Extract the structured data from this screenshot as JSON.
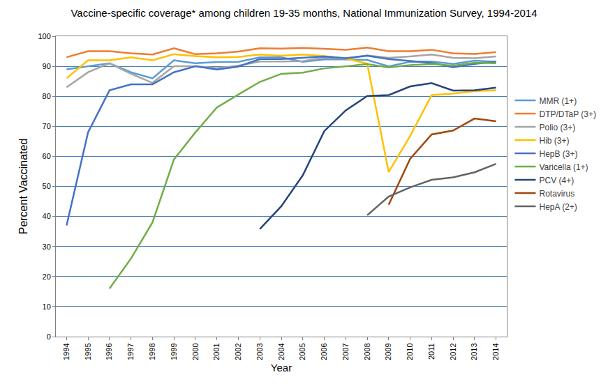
{
  "chart_data": {
    "type": "line",
    "title": "Vaccine-specific coverage* among children 19-35 months, National Immunization Survey, 1994-2014",
    "x_label": "Year",
    "y_label": "Percent Vaccinated",
    "x": [
      1994,
      1995,
      1996,
      1997,
      1998,
      1999,
      2000,
      2001,
      2002,
      2003,
      2004,
      2005,
      2006,
      2007,
      2008,
      2009,
      2010,
      2011,
      2012,
      2013,
      2014
    ],
    "xlim": [
      1993.5,
      2014.5
    ],
    "xticks": [
      1994,
      1995,
      1996,
      1997,
      1998,
      1999,
      2000,
      2001,
      2002,
      2003,
      2004,
      2005,
      2006,
      2007,
      2008,
      2009,
      2010,
      2011,
      2012,
      2013,
      2014
    ],
    "ylim": [
      0,
      100
    ],
    "yticks": [
      0,
      10,
      20,
      30,
      40,
      50,
      60,
      70,
      80,
      90,
      100
    ],
    "grid": true,
    "legend": "right",
    "marker": "none",
    "series": [
      {
        "name": "MMR (1+)",
        "color": "#5b9bd5",
        "values": [
          89,
          90,
          91,
          88,
          86,
          92,
          91,
          91.4,
          91.5,
          93,
          93,
          91.5,
          92.3,
          92.3,
          92.1,
          90,
          91.5,
          91.6,
          90.8,
          91.9,
          91.5
        ]
      },
      {
        "name": "DTP/DTaP (3+)",
        "color": "#ed7d31",
        "values": [
          93,
          95,
          95,
          94.3,
          93.9,
          96,
          94,
          94.3,
          94.9,
          96,
          95.9,
          96.1,
          95.8,
          95.5,
          96.2,
          95,
          95,
          95.5,
          94.3,
          94.1,
          94.7
        ]
      },
      {
        "name": "Polio (3+)",
        "color": "#a5a5a5",
        "values": [
          83,
          88,
          91,
          87.5,
          84.5,
          90,
          90,
          89.4,
          90.2,
          91.6,
          91.6,
          91.7,
          92.9,
          92.6,
          93.6,
          92.8,
          93.3,
          93.9,
          92.8,
          92.7,
          93.3
        ]
      },
      {
        "name": "Hib (3+)",
        "color": "#ffc000",
        "values": [
          86,
          92,
          92,
          93,
          92,
          94,
          93.4,
          93,
          93.1,
          93.9,
          93.5,
          93.9,
          93.4,
          92.6,
          90.9,
          54.8,
          66.8,
          80.4,
          80.9,
          81.7,
          82
        ]
      },
      {
        "name": "HepB (3+)",
        "color": "#4472c4",
        "values": [
          37,
          68,
          82,
          84,
          84,
          88,
          90,
          88.9,
          89.9,
          92.4,
          92.4,
          92.9,
          93.3,
          92.7,
          93.5,
          92.4,
          91.8,
          91.1,
          89.7,
          90.8,
          91.6
        ]
      },
      {
        "name": "Varicella (1+)",
        "color": "#70ad47",
        "values": [
          null,
          null,
          16,
          26,
          38,
          59,
          68,
          76.3,
          80.6,
          84.8,
          87.5,
          87.9,
          89.3,
          90,
          90.7,
          89.6,
          90.4,
          90.8,
          90.2,
          91.2,
          91
        ]
      },
      {
        "name": "PCV (4+)",
        "color": "#264478",
        "values": [
          null,
          null,
          null,
          null,
          null,
          null,
          null,
          null,
          null,
          35.8,
          43.4,
          53.7,
          68.4,
          75.3,
          80.1,
          80.4,
          83.3,
          84.4,
          81.9,
          82,
          82.9
        ]
      },
      {
        "name": "Rotavirus",
        "color": "#9e480e",
        "values": [
          null,
          null,
          null,
          null,
          null,
          null,
          null,
          null,
          null,
          null,
          null,
          null,
          null,
          null,
          null,
          43.9,
          59.2,
          67.3,
          68.6,
          72.6,
          71.7
        ]
      },
      {
        "name": "HepA (2+)",
        "color": "#636363",
        "values": [
          null,
          null,
          null,
          null,
          null,
          null,
          null,
          null,
          null,
          null,
          null,
          null,
          null,
          null,
          40.4,
          46.6,
          49.7,
          52.2,
          53,
          54.7,
          57.5
        ]
      }
    ]
  }
}
